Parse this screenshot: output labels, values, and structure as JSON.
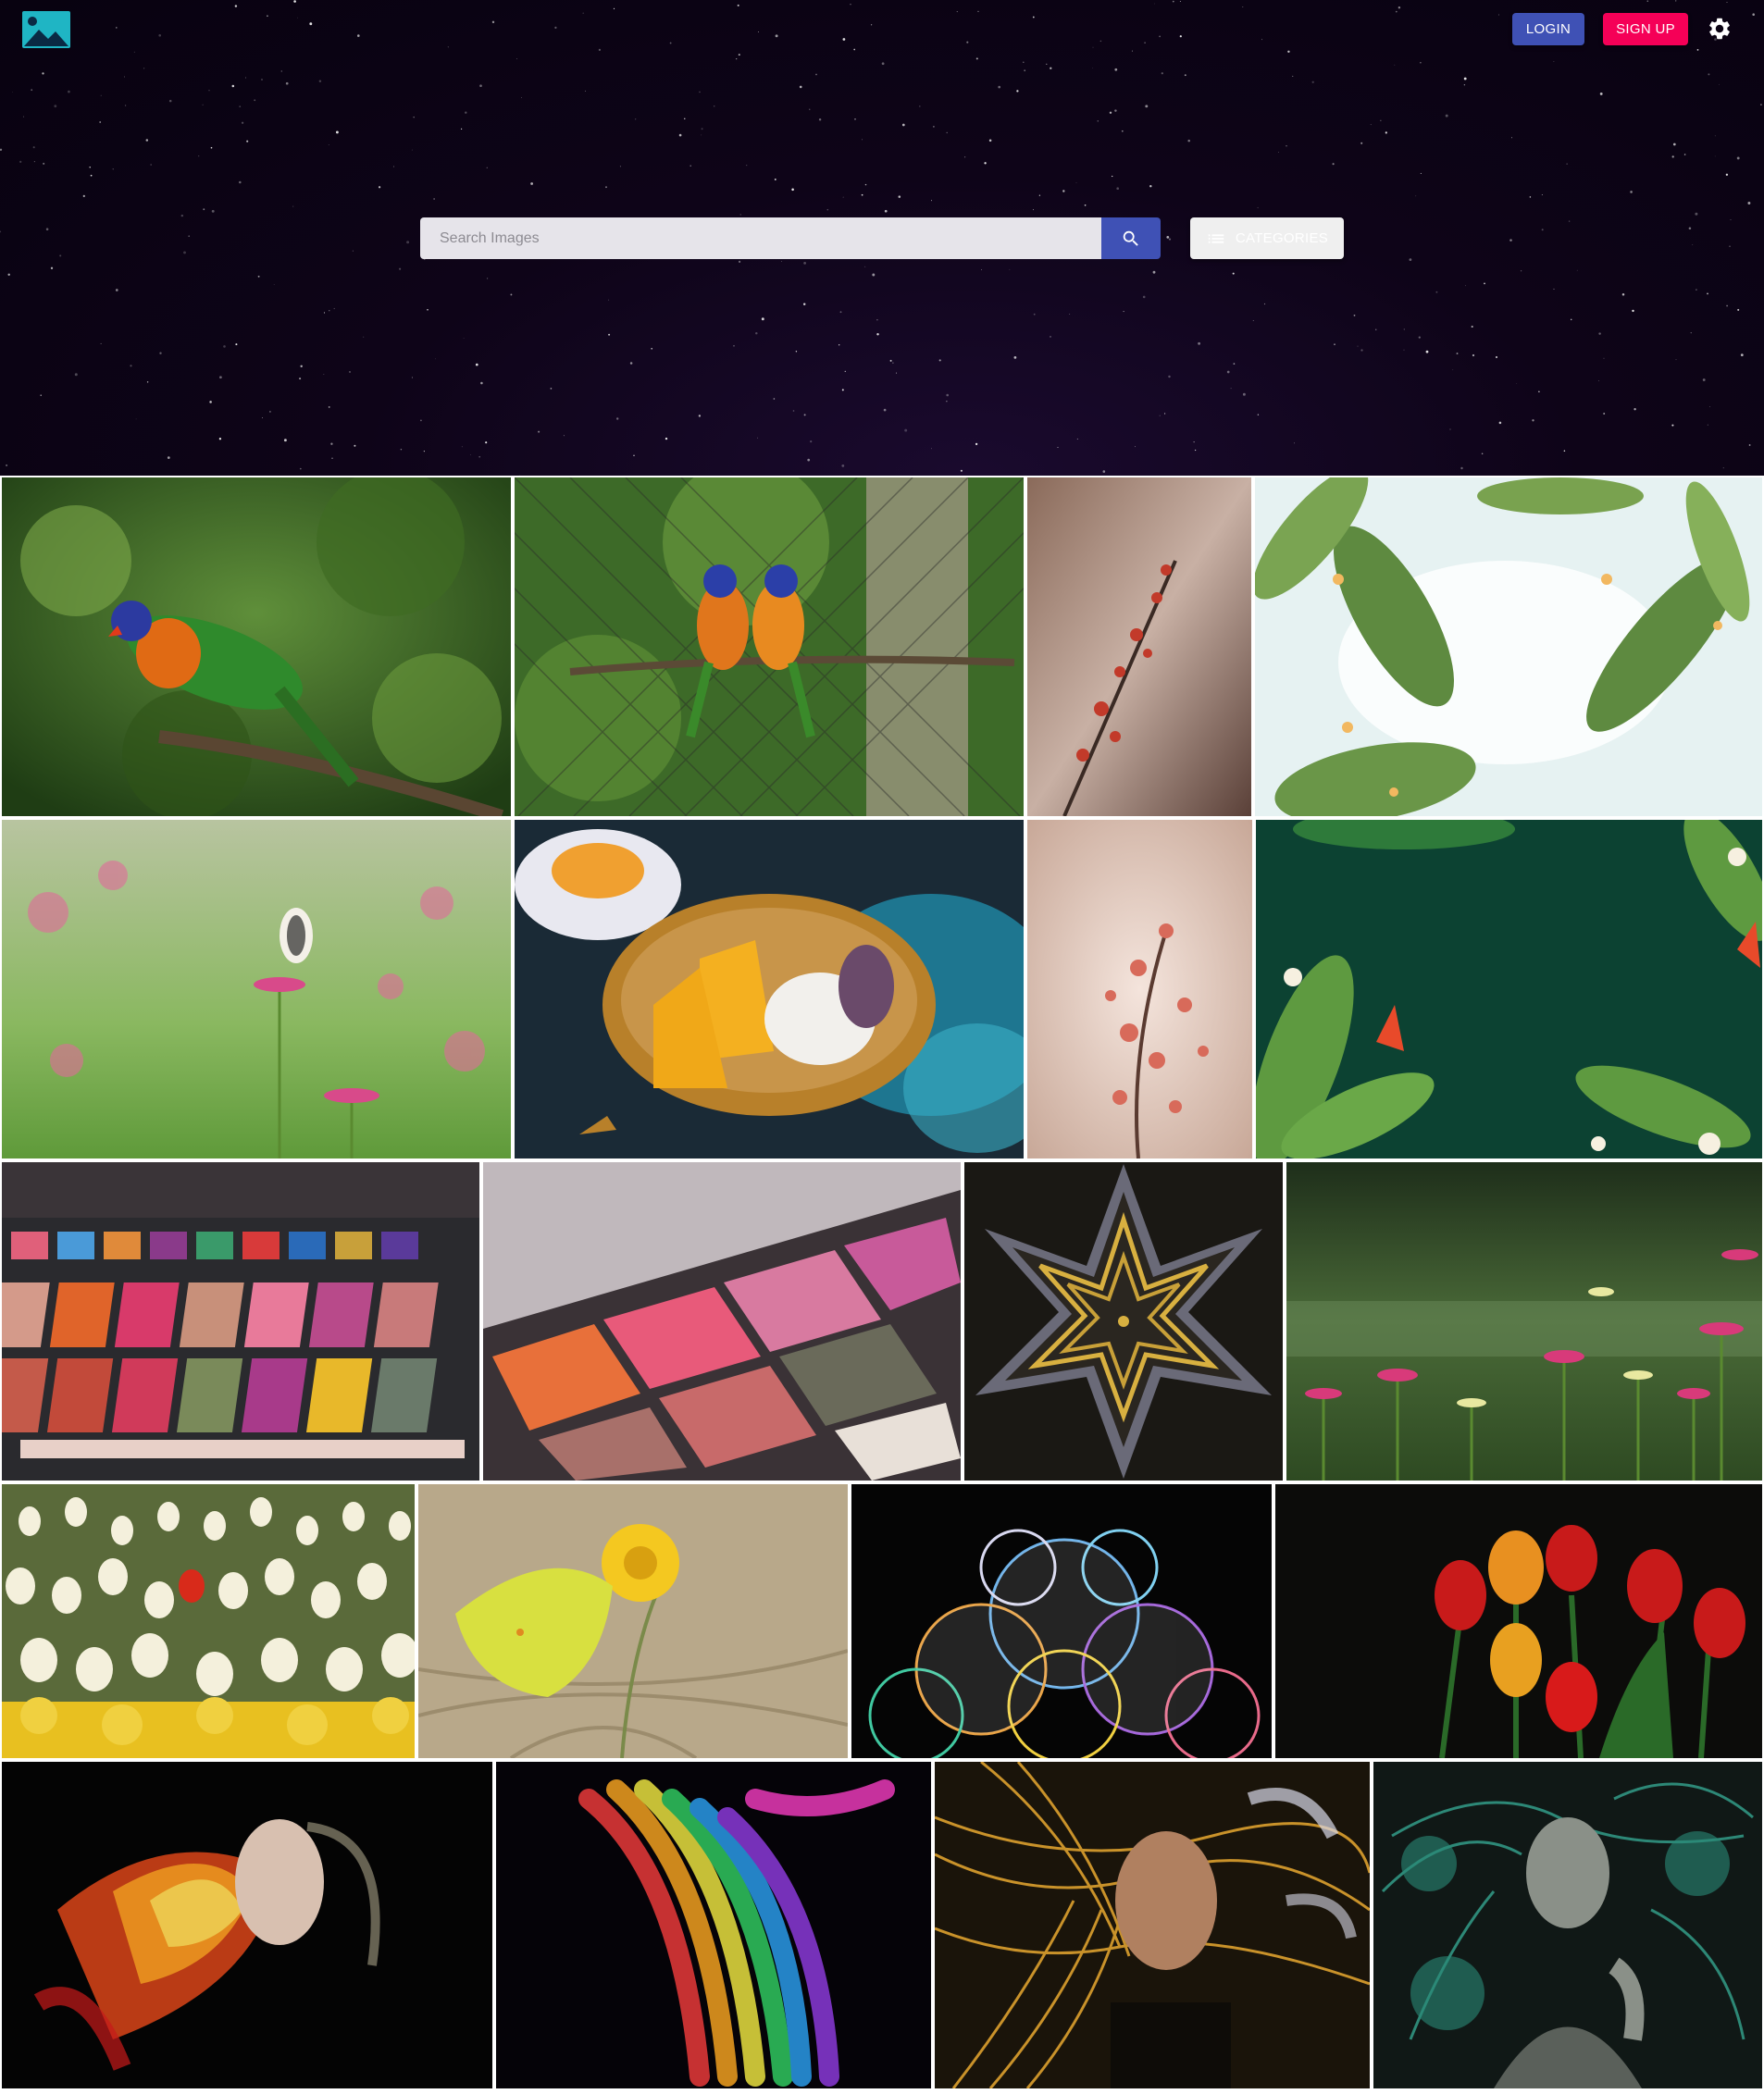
{
  "header": {
    "login_label": "LOGIN",
    "signup_label": "SIGN UP",
    "logo_icon": "landscape-image-icon",
    "settings_icon": "gear-icon"
  },
  "search": {
    "placeholder": "Search Images",
    "value": "",
    "button_icon": "search-icon",
    "categories_label": "CATEGORIES",
    "categories_icon": "list-icon"
  },
  "colors": {
    "primary": "#3f51b5",
    "secondary": "#f50057",
    "hero_background": "#0e0418",
    "logo_teal": "#1fb5c4"
  },
  "gallery": {
    "images": [
      {
        "subject": "rainbow lorikeet on branch"
      },
      {
        "subject": "two lorikeets on branch by fence"
      },
      {
        "subject": "red blossom branch"
      },
      {
        "subject": "tropical leaves watercolor frame"
      },
      {
        "subject": "butterfly on pink flower"
      },
      {
        "subject": "mango sticky rice"
      },
      {
        "subject": "pink blossom branch"
      },
      {
        "subject": "tropical leaves on dark green"
      },
      {
        "subject": "eyeshadow palette"
      },
      {
        "subject": "eyeshadow palette close-up"
      },
      {
        "subject": "fractal star pattern"
      },
      {
        "subject": "zinnia flower field"
      },
      {
        "subject": "tulip field with red tulip"
      },
      {
        "subject": "yellow butterfly on flower"
      },
      {
        "subject": "soap bubbles"
      },
      {
        "subject": "red and yellow tulips"
      },
      {
        "subject": "woman with fiery light"
      },
      {
        "subject": "rainbow light abstract"
      },
      {
        "subject": "woman with golden light streaks"
      },
      {
        "subject": "woman with teal particles"
      }
    ]
  }
}
